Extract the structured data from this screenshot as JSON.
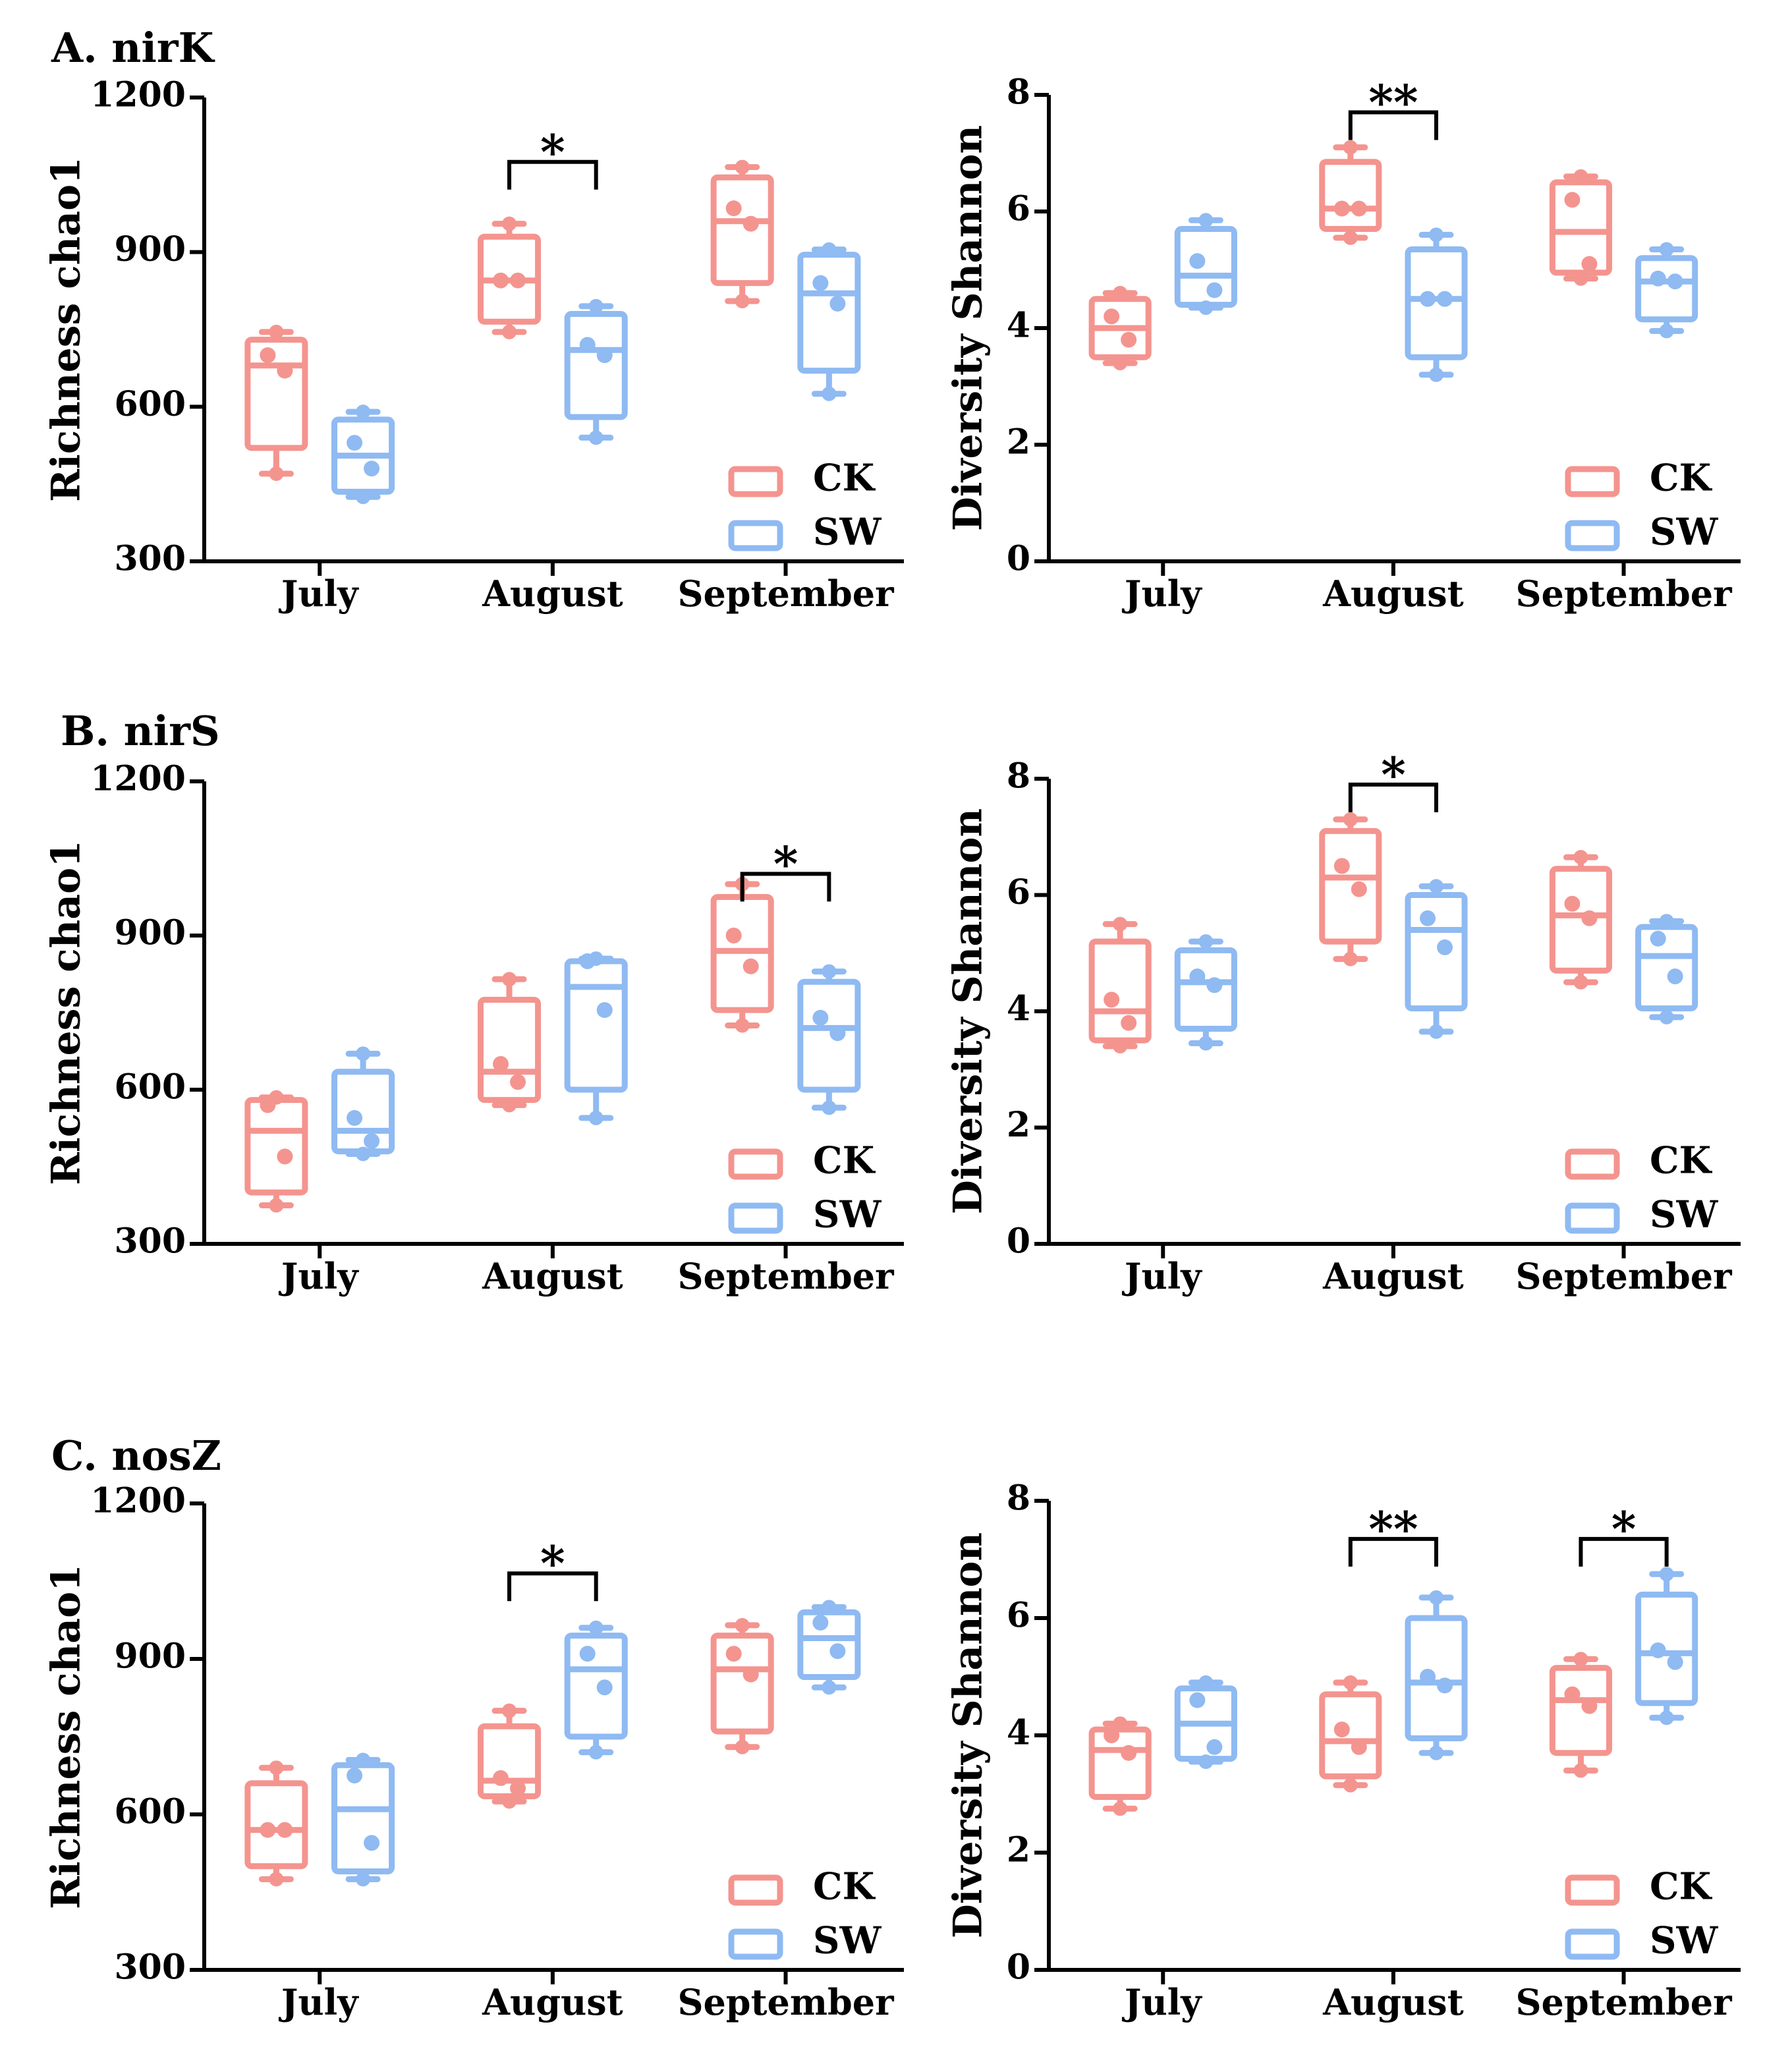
{
  "colors": {
    "CK": "#f4948f",
    "SW": "#8fbaf2",
    "axis": "#000000"
  },
  "chart_data": [
    {
      "type": "box",
      "panel": "A. nirK",
      "metric": "richness",
      "title": "A. nirK",
      "ylabel": "Richness chao1",
      "ylim": [
        300,
        1200
      ],
      "yticks": [
        300,
        600,
        900,
        1200
      ],
      "categories": [
        "July",
        "August",
        "September"
      ],
      "legend": [
        "CK",
        "SW"
      ],
      "legend_position": "bottom-right",
      "series": [
        {
          "name": "CK",
          "boxes": [
            {
              "min": 470,
              "q1": 520,
              "median": 680,
              "q3": 730,
              "max": 745,
              "points": [
                700,
                670
              ]
            },
            {
              "min": 745,
              "q1": 765,
              "median": 845,
              "q3": 930,
              "max": 955,
              "points": [
                845,
                845
              ]
            },
            {
              "min": 805,
              "q1": 840,
              "median": 960,
              "q3": 1045,
              "max": 1065,
              "points": [
                985,
                955
              ]
            }
          ]
        },
        {
          "name": "SW",
          "boxes": [
            {
              "min": 425,
              "q1": 435,
              "median": 505,
              "q3": 575,
              "max": 590,
              "points": [
                530,
                480
              ]
            },
            {
              "min": 540,
              "q1": 580,
              "median": 710,
              "q3": 780,
              "max": 795,
              "points": [
                720,
                700
              ]
            },
            {
              "min": 625,
              "q1": 670,
              "median": 820,
              "q3": 895,
              "max": 905,
              "points": [
                840,
                800
              ]
            }
          ]
        }
      ],
      "significance": [
        {
          "category": "August",
          "label": "*",
          "y": 1075
        }
      ]
    },
    {
      "type": "box",
      "panel": "A. nirK",
      "metric": "diversity",
      "title": "",
      "ylabel": "Diversity Shannon",
      "ylim": [
        0,
        8
      ],
      "yticks": [
        0,
        2,
        4,
        6,
        8
      ],
      "categories": [
        "July",
        "August",
        "September"
      ],
      "legend": [
        "CK",
        "SW"
      ],
      "legend_position": "bottom-right",
      "series": [
        {
          "name": "CK",
          "boxes": [
            {
              "min": 3.4,
              "q1": 3.5,
              "median": 4.0,
              "q3": 4.5,
              "max": 4.6,
              "points": [
                4.2,
                3.8
              ]
            },
            {
              "min": 5.55,
              "q1": 5.7,
              "median": 6.05,
              "q3": 6.85,
              "max": 7.1,
              "points": [
                6.05,
                6.05
              ]
            },
            {
              "min": 4.85,
              "q1": 4.95,
              "median": 5.65,
              "q3": 6.5,
              "max": 6.6,
              "points": [
                6.2,
                5.1
              ]
            }
          ]
        },
        {
          "name": "SW",
          "boxes": [
            {
              "min": 4.35,
              "q1": 4.4,
              "median": 4.9,
              "q3": 5.7,
              "max": 5.85,
              "points": [
                5.15,
                4.65
              ]
            },
            {
              "min": 3.2,
              "q1": 3.5,
              "median": 4.5,
              "q3": 5.35,
              "max": 5.6,
              "points": [
                4.5,
                4.5
              ]
            },
            {
              "min": 3.95,
              "q1": 4.15,
              "median": 4.8,
              "q3": 5.2,
              "max": 5.35,
              "points": [
                4.85,
                4.8
              ]
            }
          ]
        }
      ],
      "significance": [
        {
          "category": "August",
          "label": "**",
          "y": 7.7
        }
      ]
    },
    {
      "type": "box",
      "panel": "B. nirS",
      "metric": "richness",
      "title": "B. nirS",
      "ylabel": "Richness chao1",
      "ylim": [
        300,
        1200
      ],
      "yticks": [
        300,
        600,
        900,
        1200
      ],
      "categories": [
        "July",
        "August",
        "September"
      ],
      "legend": [
        "CK",
        "SW"
      ],
      "legend_position": "bottom-right",
      "series": [
        {
          "name": "CK",
          "boxes": [
            {
              "min": 375,
              "q1": 400,
              "median": 520,
              "q3": 580,
              "max": 585,
              "points": [
                570,
                470
              ]
            },
            {
              "min": 570,
              "q1": 580,
              "median": 635,
              "q3": 775,
              "max": 815,
              "points": [
                650,
                615
              ]
            },
            {
              "min": 725,
              "q1": 755,
              "median": 870,
              "q3": 975,
              "max": 1000,
              "points": [
                900,
                840
              ]
            }
          ]
        },
        {
          "name": "SW",
          "boxes": [
            {
              "min": 475,
              "q1": 480,
              "median": 520,
              "q3": 635,
              "max": 670,
              "points": [
                545,
                500
              ]
            },
            {
              "min": 545,
              "q1": 600,
              "median": 800,
              "q3": 850,
              "max": 855,
              "points": [
                850,
                755
              ]
            },
            {
              "min": 565,
              "q1": 600,
              "median": 720,
              "q3": 810,
              "max": 830,
              "points": [
                740,
                710
              ]
            }
          ]
        }
      ],
      "significance": [
        {
          "category": "September",
          "label": "*",
          "y": 1020
        }
      ]
    },
    {
      "type": "box",
      "panel": "B. nirS",
      "metric": "diversity",
      "title": "",
      "ylabel": "Diversity Shannon",
      "ylim": [
        0,
        8
      ],
      "yticks": [
        0,
        2,
        4,
        6,
        8
      ],
      "categories": [
        "July",
        "August",
        "September"
      ],
      "legend": [
        "CK",
        "SW"
      ],
      "legend_position": "bottom-right",
      "series": [
        {
          "name": "CK",
          "boxes": [
            {
              "min": 3.4,
              "q1": 3.5,
              "median": 4.0,
              "q3": 5.2,
              "max": 5.5,
              "points": [
                4.2,
                3.8
              ]
            },
            {
              "min": 4.9,
              "q1": 5.2,
              "median": 6.3,
              "q3": 7.1,
              "max": 7.3,
              "points": [
                6.5,
                6.1
              ]
            },
            {
              "min": 4.5,
              "q1": 4.7,
              "median": 5.65,
              "q3": 6.45,
              "max": 6.65,
              "points": [
                5.85,
                5.6
              ]
            }
          ]
        },
        {
          "name": "SW",
          "boxes": [
            {
              "min": 3.45,
              "q1": 3.7,
              "median": 4.5,
              "q3": 5.05,
              "max": 5.2,
              "points": [
                4.6,
                4.45
              ]
            },
            {
              "min": 3.65,
              "q1": 4.05,
              "median": 5.4,
              "q3": 6.0,
              "max": 6.15,
              "points": [
                5.6,
                5.1
              ]
            },
            {
              "min": 3.9,
              "q1": 4.05,
              "median": 4.95,
              "q3": 5.45,
              "max": 5.55,
              "points": [
                5.25,
                4.6
              ]
            }
          ]
        }
      ],
      "significance": [
        {
          "category": "August",
          "label": "*",
          "y": 7.9
        }
      ]
    },
    {
      "type": "box",
      "panel": "C. nosZ",
      "metric": "richness",
      "title": "C. nosZ",
      "ylabel": "Richness chao1",
      "ylim": [
        300,
        1200
      ],
      "yticks": [
        300,
        600,
        900,
        1200
      ],
      "categories": [
        "July",
        "August",
        "September"
      ],
      "legend": [
        "CK",
        "SW"
      ],
      "legend_position": "bottom-right",
      "series": [
        {
          "name": "CK",
          "boxes": [
            {
              "min": 475,
              "q1": 500,
              "median": 570,
              "q3": 660,
              "max": 690,
              "points": [
                570,
                570
              ]
            },
            {
              "min": 625,
              "q1": 635,
              "median": 665,
              "q3": 770,
              "max": 800,
              "points": [
                670,
                650
              ]
            },
            {
              "min": 730,
              "q1": 760,
              "median": 880,
              "q3": 945,
              "max": 965,
              "points": [
                910,
                870
              ]
            }
          ]
        },
        {
          "name": "SW",
          "boxes": [
            {
              "min": 475,
              "q1": 490,
              "median": 610,
              "q3": 695,
              "max": 705,
              "points": [
                675,
                545
              ]
            },
            {
              "min": 720,
              "q1": 750,
              "median": 880,
              "q3": 945,
              "max": 960,
              "points": [
                910,
                845
              ]
            },
            {
              "min": 845,
              "q1": 865,
              "median": 940,
              "q3": 990,
              "max": 1000,
              "points": [
                970,
                915
              ]
            }
          ]
        }
      ],
      "significance": [
        {
          "category": "August",
          "label": "*",
          "y": 1065
        }
      ]
    },
    {
      "type": "box",
      "panel": "C. nosZ",
      "metric": "diversity",
      "title": "",
      "ylabel": "Diversity Shannon",
      "ylim": [
        0,
        8
      ],
      "yticks": [
        0,
        2,
        4,
        6,
        8
      ],
      "categories": [
        "July",
        "August",
        "September"
      ],
      "legend": [
        "CK",
        "SW"
      ],
      "legend_position": "bottom-right",
      "series": [
        {
          "name": "CK",
          "boxes": [
            {
              "min": 2.75,
              "q1": 2.95,
              "median": 3.75,
              "q3": 4.1,
              "max": 4.2,
              "points": [
                4.0,
                3.7
              ]
            },
            {
              "min": 3.15,
              "q1": 3.3,
              "median": 3.9,
              "q3": 4.7,
              "max": 4.9,
              "points": [
                4.1,
                3.8
              ]
            },
            {
              "min": 3.4,
              "q1": 3.7,
              "median": 4.6,
              "q3": 5.15,
              "max": 5.3,
              "points": [
                4.7,
                4.5
              ]
            }
          ]
        },
        {
          "name": "SW",
          "boxes": [
            {
              "min": 3.55,
              "q1": 3.6,
              "median": 4.2,
              "q3": 4.8,
              "max": 4.9,
              "points": [
                4.6,
                3.8
              ]
            },
            {
              "min": 3.7,
              "q1": 3.95,
              "median": 4.9,
              "q3": 6.0,
              "max": 6.35,
              "points": [
                5.0,
                4.85
              ]
            },
            {
              "min": 4.3,
              "q1": 4.55,
              "median": 5.4,
              "q3": 6.4,
              "max": 6.75,
              "points": [
                5.45,
                5.25
              ]
            }
          ]
        }
      ],
      "significance": [
        {
          "category": "August",
          "label": "**",
          "y": 7.35
        },
        {
          "category": "September",
          "label": "*",
          "y": 7.35
        }
      ]
    }
  ]
}
